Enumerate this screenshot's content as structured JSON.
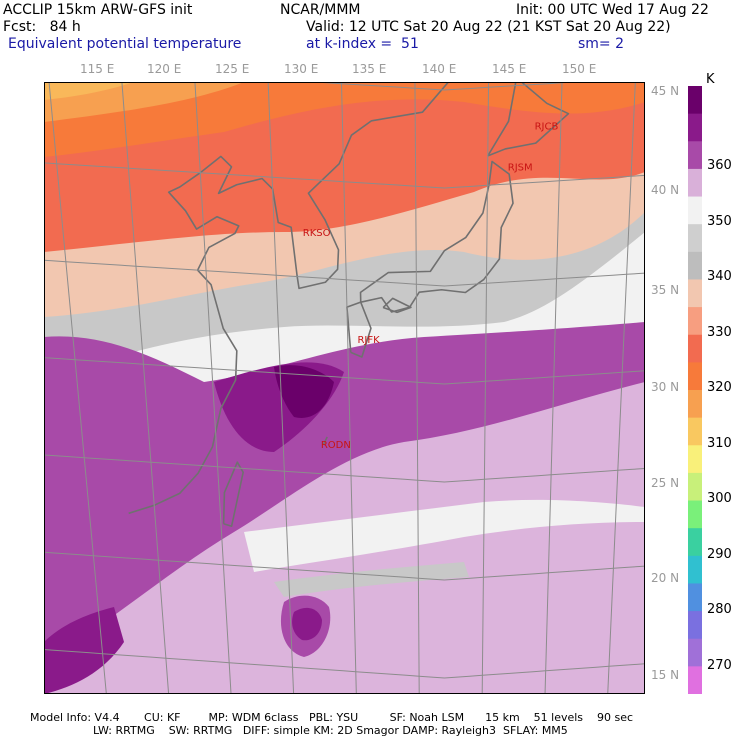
{
  "header": {
    "model": "ACCLIP 15km ARW-GFS init",
    "org": "NCAR/MMM",
    "init": "Init: 00 UTC Wed 17 Aug 22",
    "fcst": "Fcst:   84 h",
    "valid": "Valid: 12 UTC Sat 20 Aug 22 (21 KST Sat 20 Aug 22)",
    "field": "Equivalent potential temperature",
    "level": "at k-index =  51",
    "smooth": "sm= 2"
  },
  "lon_labels": [
    "115 E",
    "120 E",
    "125 E",
    "130 E",
    "135 E",
    "140 E",
    "145 E",
    "150 E"
  ],
  "lat_labels": [
    "45 N",
    "40 N",
    "35 N",
    "30 N",
    "25 N",
    "20 N",
    "15 N"
  ],
  "stations": [
    {
      "id": "RJCB",
      "lon": 143.2,
      "lat": 42.7
    },
    {
      "id": "RJSM",
      "lon": 141.4,
      "lat": 40.7
    },
    {
      "id": "RKSO",
      "lon": 127.0,
      "lat": 37.1
    },
    {
      "id": "RJFK",
      "lon": 130.7,
      "lat": 31.8
    },
    {
      "id": "RODN",
      "lon": 127.8,
      "lat": 26.3
    }
  ],
  "colorbar": {
    "unit": "K",
    "labels": [
      "360",
      "350",
      "340",
      "330",
      "320",
      "310",
      "300",
      "290",
      "280",
      "270"
    ],
    "colors": [
      "#6a006a",
      "#8a1a8a",
      "#a84aa8",
      "#d9b0d9",
      "#f2f2f2",
      "#cfcfcf",
      "#bdbdbd",
      "#f2c7b0",
      "#f79e80",
      "#f26b50",
      "#f77a3a",
      "#f7a050",
      "#f9c860",
      "#f9f07a",
      "#c8f07a",
      "#7af07a",
      "#3ad0a0",
      "#30c0d0",
      "#5090e0",
      "#7a70e0",
      "#a070d8",
      "#e070e0"
    ]
  },
  "footer": {
    "line1": "Model Info: V4.4       CU: KF        MP: WDM 6class   PBL: YSU         SF: Noah LSM      15 km    51 levels    90 sec",
    "line2": "                  LW: RRTMG    SW: RRTMG   DIFF: simple KM: 2D Smagor DAMP: Rayleigh3  SFLAY: MM5"
  }
}
